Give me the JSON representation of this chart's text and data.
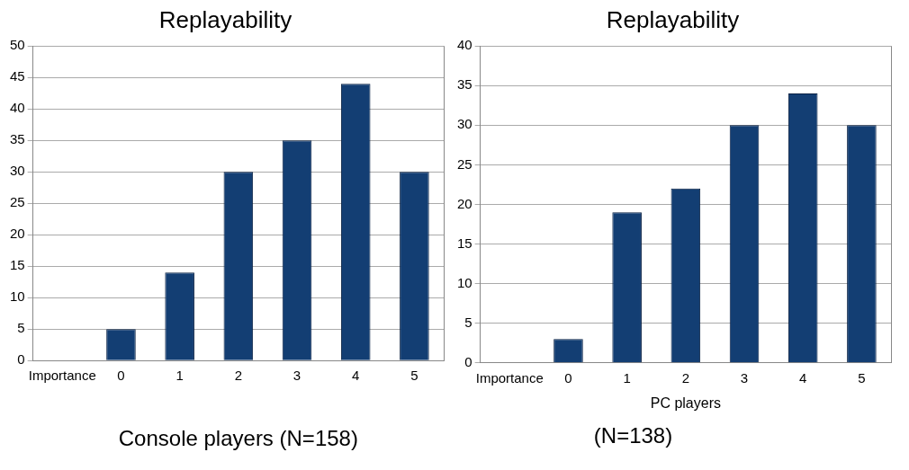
{
  "chart_data": [
    {
      "type": "bar",
      "title": "Replayability",
      "xlabel": "Console players (N=158)",
      "categories": [
        "Importance",
        "0",
        "1",
        "2",
        "3",
        "4",
        "5"
      ],
      "values": [
        null,
        5,
        14,
        30,
        35,
        44,
        30
      ],
      "color": "#133e73",
      "ylim": [
        0,
        50
      ],
      "yticks": [
        0,
        5,
        10,
        15,
        20,
        25,
        30,
        35,
        40,
        45,
        50
      ],
      "grid": "y",
      "legend": false
    },
    {
      "type": "bar",
      "title": "Replayability",
      "xlabel": "PC players",
      "categories": [
        "Importance",
        "0",
        "1",
        "2",
        "3",
        "4",
        "5"
      ],
      "values": [
        null,
        3,
        19,
        22,
        30,
        34,
        30
      ],
      "color": "#133e73",
      "ylim": [
        0,
        40
      ],
      "yticks": [
        0,
        5,
        10,
        15,
        20,
        25,
        30,
        35,
        40
      ],
      "grid": "y",
      "legend": false,
      "annotations": [
        "(N=138)"
      ]
    }
  ]
}
